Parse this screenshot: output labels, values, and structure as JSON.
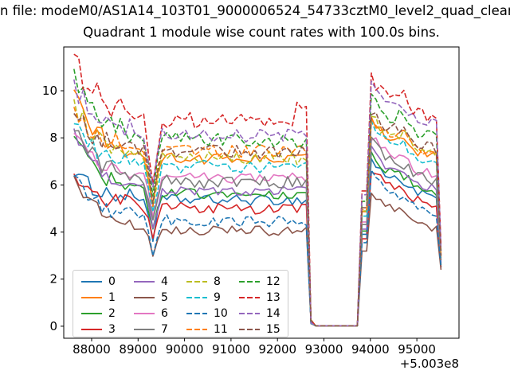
{
  "figure": {
    "suptitle": "n file: modeM0/AS1A14_103T01_9000006524_54733cztM0_level2_quad_clean",
    "title": "Quadrant 1 module wise count rates with 100.0s bins."
  },
  "chart_data": {
    "type": "line",
    "title": "Quadrant 1 module wise count rates with 100.0s bins.",
    "suptitle_visible": "n file: modeM0/AS1A14_103T01_9000006524_54733cztM0_level2_quad_clean",
    "xlabel": "",
    "ylabel": "",
    "x_offset_label": "+5.003e8",
    "x_ticks": [
      88000,
      89000,
      90000,
      91000,
      92000,
      93000,
      94000,
      95000
    ],
    "y_ticks": [
      0,
      2,
      4,
      6,
      8,
      10
    ],
    "xlim": [
      87400,
      95907
    ],
    "ylim": [
      -0.51,
      11.86
    ],
    "grid": false,
    "legend_position": "lower-left",
    "legend_columns": 4,
    "bin_seconds": 100.0,
    "x_start": 87620,
    "x_step": 100,
    "n_points": 80,
    "gap_zero": {
      "start": 92700,
      "end": 93850
    },
    "dip": {
      "x": 89320,
      "factor": 0.7,
      "edge_factor": 0.87
    },
    "decay_tau": 550,
    "post_peak_x": 94020,
    "end_drop_x": 95520,
    "series": [
      {
        "name": "0",
        "color": "#1f77b4",
        "dashed": false,
        "start": 6.5,
        "plateau": 5.35,
        "peak": 7.1,
        "final": 2.5,
        "noise": 0.22,
        "bump": 0.25,
        "pre_gap_bump": 0
      },
      {
        "name": "1",
        "color": "#ff7f0e",
        "dashed": false,
        "start": 9.9,
        "plateau": 7.1,
        "peak": 8.85,
        "final": 2.9,
        "noise": 0.24,
        "bump": 0.25,
        "pre_gap_bump": 0
      },
      {
        "name": "2",
        "color": "#2ca02c",
        "dashed": false,
        "start": 8.1,
        "plateau": 5.6,
        "peak": 7.35,
        "final": 2.6,
        "noise": 0.22,
        "bump": 0.25,
        "pre_gap_bump": 0
      },
      {
        "name": "3",
        "color": "#d62728",
        "dashed": false,
        "start": 6.6,
        "plateau": 5.0,
        "peak": 6.75,
        "final": 2.5,
        "noise": 0.24,
        "bump": 0.25,
        "pre_gap_bump": 0
      },
      {
        "name": "4",
        "color": "#9467bd",
        "dashed": false,
        "start": 8.5,
        "plateau": 5.75,
        "peak": 7.5,
        "final": 2.7,
        "noise": 0.22,
        "bump": 0.25,
        "pre_gap_bump": 0
      },
      {
        "name": "5",
        "color": "#8c564b",
        "dashed": false,
        "start": 6.5,
        "plateau": 4.05,
        "peak": 5.8,
        "final": 2.4,
        "noise": 0.2,
        "bump": 0.2,
        "pre_gap_bump": 0
      },
      {
        "name": "6",
        "color": "#e377c2",
        "dashed": false,
        "start": 8.2,
        "plateau": 6.3,
        "peak": 8.05,
        "final": 2.8,
        "noise": 0.24,
        "bump": 0.25,
        "pre_gap_bump": 0
      },
      {
        "name": "7",
        "color": "#7f7f7f",
        "dashed": false,
        "start": 8.4,
        "plateau": 6.1,
        "peak": 7.85,
        "final": 2.8,
        "noise": 0.26,
        "bump": 0.25,
        "pre_gap_bump": 0
      },
      {
        "name": "8",
        "color": "#bcbd22",
        "dashed": true,
        "start": 9.5,
        "plateau": 7.15,
        "peak": 8.9,
        "final": 3.0,
        "noise": 0.28,
        "bump": 0.4,
        "pre_gap_bump": 0
      },
      {
        "name": "9",
        "color": "#17becf",
        "dashed": true,
        "start": 8.7,
        "plateau": 6.75,
        "peak": 8.5,
        "final": 2.9,
        "noise": 0.28,
        "bump": 0.4,
        "pre_gap_bump": 0
      },
      {
        "name": "10",
        "color": "#1f77b4",
        "dashed": true,
        "start": 6.3,
        "plateau": 4.45,
        "peak": 6.45,
        "final": 2.5,
        "noise": 0.25,
        "bump": 0.3,
        "pre_gap_bump": 0
      },
      {
        "name": "11",
        "color": "#ff7f0e",
        "dashed": true,
        "start": 9.2,
        "plateau": 7.45,
        "peak": 9.0,
        "final": 3.0,
        "noise": 0.28,
        "bump": 0.4,
        "pre_gap_bump": 0
      },
      {
        "name": "12",
        "color": "#2ca02c",
        "dashed": true,
        "start": 10.8,
        "plateau": 7.9,
        "peak": 9.65,
        "final": 3.2,
        "noise": 0.3,
        "bump": 0.45,
        "pre_gap_bump": 0
      },
      {
        "name": "13",
        "color": "#d62728",
        "dashed": true,
        "start": 11.4,
        "plateau": 8.7,
        "peak": 10.45,
        "final": 3.4,
        "noise": 0.35,
        "bump": 0.5,
        "pre_gap_bump": 0.8
      },
      {
        "name": "14",
        "color": "#9467bd",
        "dashed": true,
        "start": 10.3,
        "plateau": 8.1,
        "peak": 10.15,
        "final": 3.2,
        "noise": 0.3,
        "bump": 0.45,
        "pre_gap_bump": 0
      },
      {
        "name": "15",
        "color": "#8c564b",
        "dashed": true,
        "start": 9.0,
        "plateau": 7.4,
        "peak": 9.15,
        "final": 3.0,
        "noise": 0.28,
        "bump": 0.4,
        "pre_gap_bump": 0
      }
    ]
  }
}
